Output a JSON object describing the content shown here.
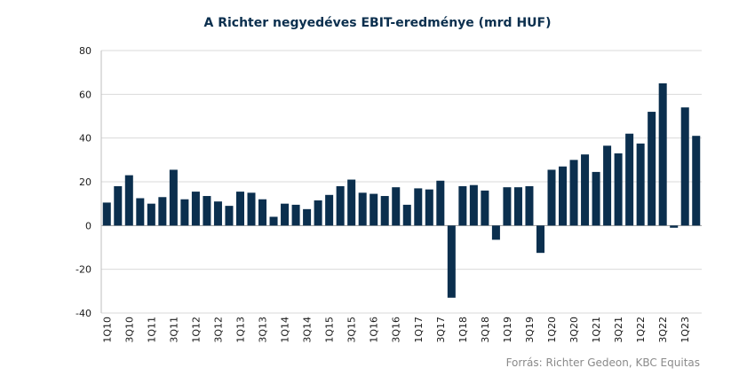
{
  "chart_data": {
    "type": "bar",
    "title": "A Richter negyedéves EBIT-eredménye (mrd HUF)",
    "source": "Forrás: Richter Gedeon, KBC Equitas",
    "xlabel": "",
    "ylabel": "",
    "ylim": [
      -40,
      80
    ],
    "yticks": [
      -40,
      -20,
      0,
      20,
      40,
      60,
      80
    ],
    "grid": true,
    "bar_color": "#0b2f4e",
    "categories": [
      "1Q10",
      "2Q10",
      "3Q10",
      "4Q10",
      "1Q11",
      "2Q11",
      "3Q11",
      "4Q11",
      "1Q12",
      "2Q12",
      "3Q12",
      "4Q12",
      "1Q13",
      "2Q13",
      "3Q13",
      "4Q13",
      "1Q14",
      "2Q14",
      "3Q14",
      "4Q14",
      "1Q15",
      "2Q15",
      "3Q15",
      "4Q15",
      "1Q16",
      "2Q16",
      "3Q16",
      "4Q16",
      "1Q17",
      "2Q17",
      "3Q17",
      "4Q17",
      "1Q18",
      "2Q18",
      "3Q18",
      "4Q18",
      "1Q19",
      "2Q19",
      "3Q19",
      "4Q19",
      "1Q20",
      "2Q20",
      "3Q20",
      "4Q20",
      "1Q21",
      "2Q21",
      "3Q21",
      "4Q21",
      "1Q22",
      "2Q22",
      "3Q22",
      "4Q22",
      "1Q23",
      "2Q23"
    ],
    "tick_labels": [
      "1Q10",
      "",
      "3Q10",
      "",
      "1Q11",
      "",
      "3Q11",
      "",
      "1Q12",
      "",
      "3Q12",
      "",
      "1Q13",
      "",
      "3Q13",
      "",
      "1Q14",
      "",
      "3Q14",
      "",
      "1Q15",
      "",
      "3Q15",
      "",
      "1Q16",
      "",
      "3Q16",
      "",
      "1Q17",
      "",
      "3Q17",
      "",
      "1Q18",
      "",
      "3Q18",
      "",
      "1Q19",
      "",
      "3Q19",
      "",
      "1Q20",
      "",
      "3Q20",
      "",
      "1Q21",
      "",
      "3Q21",
      "",
      "1Q22",
      "",
      "3Q22",
      "",
      "1Q23",
      ""
    ],
    "values": [
      10.5,
      18.0,
      23.0,
      12.5,
      10.0,
      13.0,
      25.5,
      12.0,
      15.5,
      13.5,
      11.0,
      9.0,
      15.5,
      15.0,
      12.0,
      4.0,
      10.0,
      9.5,
      7.5,
      11.5,
      14.0,
      18.0,
      21.0,
      15.0,
      14.5,
      13.5,
      17.5,
      9.5,
      17.0,
      16.5,
      20.5,
      -33.0,
      18.0,
      18.5,
      16.0,
      -6.5,
      17.5,
      17.5,
      18.0,
      -12.5,
      25.5,
      27.0,
      30.0,
      32.5,
      24.5,
      36.5,
      33.0,
      42.0,
      37.5,
      52.0,
      65.0,
      -1.0,
      54.0,
      41.0
    ]
  }
}
